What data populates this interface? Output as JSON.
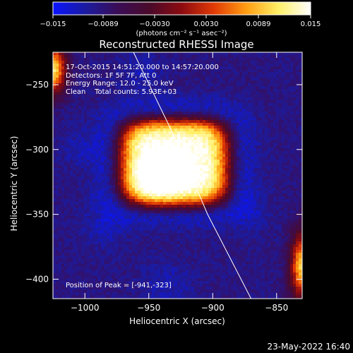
{
  "colorbar": {
    "ticks": [
      "-0.015",
      "-0.0089",
      "-0.0030",
      "0.0030",
      "0.0089",
      "0.015"
    ],
    "unit_label": "(photons cm⁻² s⁻¹ asec⁻²)",
    "stops": [
      "#0a14ff",
      "#1b1ba0",
      "#3a0d57",
      "#4a0a2a",
      "#8c0b10",
      "#e13a06",
      "#ff9d12",
      "#fff067",
      "#ffffff"
    ]
  },
  "chart_data": {
    "type": "heatmap",
    "title": "Reconstructed RHESSI Image",
    "xlabel": "Heliocentric X (arcsec)",
    "ylabel": "Heliocentric Y (arcsec)",
    "xlim": [
      -1025,
      -830
    ],
    "ylim": [
      -415,
      -225
    ],
    "xticks": [
      -1000,
      -950,
      -900,
      -850
    ],
    "yticks": [
      -250,
      -300,
      -350,
      -400
    ],
    "xtick_labels": [
      "−1000",
      "−950",
      "−900",
      "−850"
    ],
    "ytick_labels": [
      "−250",
      "−300",
      "−350",
      "−400"
    ],
    "color_range": [
      -0.015,
      0.015
    ],
    "peak": {
      "x": -941,
      "y": -323,
      "value": 0.015
    },
    "source_extent_x": [
      -975,
      -885
    ],
    "source_extent_y": [
      -345,
      -275
    ],
    "limb_curve": [
      [
        -962,
        -225
      ],
      [
        -930,
        -290
      ],
      [
        -904,
        -350
      ],
      [
        -870,
        -415
      ]
    ],
    "annotations": [
      "17-Oct-2015 14:51:20.000 to 14:57:20.000",
      "Detectors: 1F 5F 7F, Att 0",
      "Energy Range: 12.0 - 25.0 keV",
      "Clean    Total counts: 5.93E+03"
    ],
    "peak_label": "Position of Peak = [-941,-323]"
  },
  "footer_date": "23-May-2022 16:40"
}
